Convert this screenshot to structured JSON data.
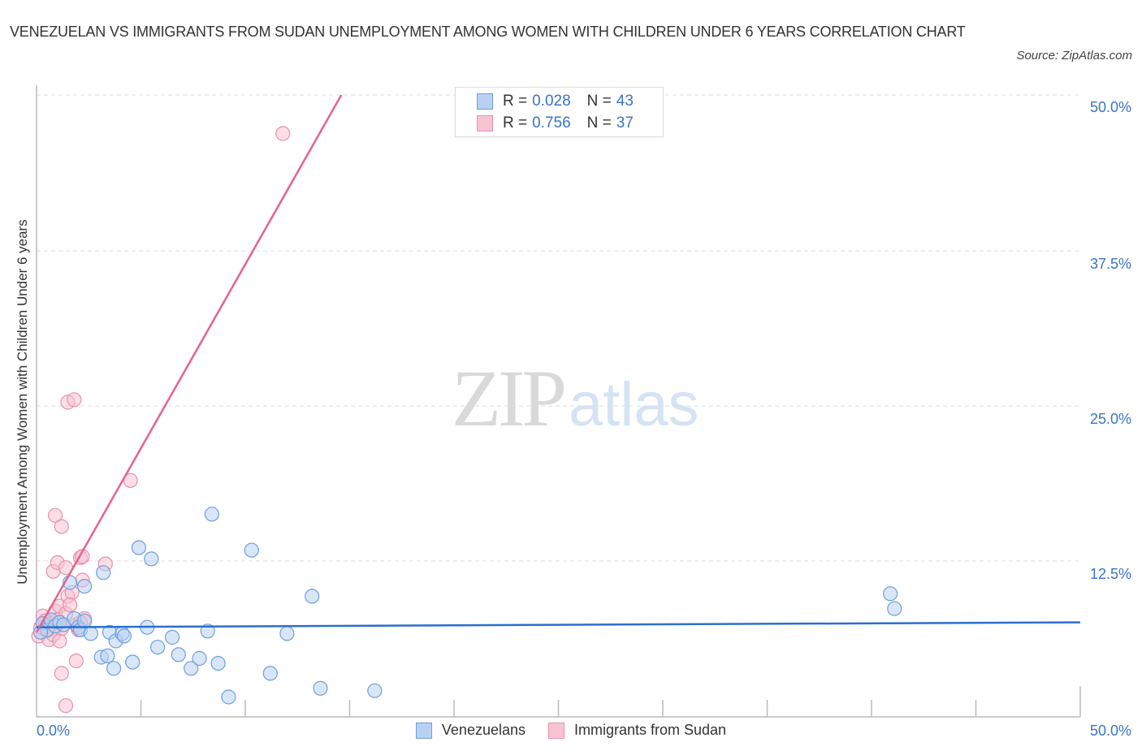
{
  "header": {
    "title": "VENEZUELAN VS IMMIGRANTS FROM SUDAN UNEMPLOYMENT AMONG WOMEN WITH CHILDREN UNDER 6 YEARS CORRELATION CHART",
    "source": "Source: ZipAtlas.com"
  },
  "legend": {
    "rows": [
      {
        "r_label": "R =",
        "r_value": "0.028",
        "n_label": "N =",
        "n_value": "43",
        "color_fill": "#b8d1f3",
        "color_stroke": "#6f9fdc"
      },
      {
        "r_label": "R =",
        "r_value": "0.756",
        "n_label": "N =",
        "n_value": "37",
        "color_fill": "#f8c3d2",
        "color_stroke": "#e891ab"
      }
    ]
  },
  "bottom_legend": {
    "items": [
      {
        "label": "Venezuelans",
        "color_fill": "#b8d1f3",
        "color_stroke": "#6f9fdc"
      },
      {
        "label": "Immigrants from Sudan",
        "color_fill": "#f8c3d2",
        "color_stroke": "#e891ab"
      }
    ]
  },
  "axes": {
    "x_min_label": "0.0%",
    "x_max_label": "50.0%",
    "y_ticks": [
      "50.0%",
      "37.5%",
      "25.0%",
      "12.5%"
    ],
    "ylabel": "Unemployment Among Women with Children Under 6 years"
  },
  "watermark": {
    "zip": "ZIP",
    "atlas": "atlas"
  },
  "colors": {
    "blue_line": "#2a6fcf",
    "pink_line": "#e5638e",
    "blue_fill": "#b8d1f3",
    "blue_stroke": "#6f9fdc",
    "pink_fill": "#f8c3d2",
    "pink_stroke": "#e891ab",
    "tick_label": "#3a74c8"
  },
  "chart_data": {
    "type": "scatter",
    "title": "VENEZUELAN VS IMMIGRANTS FROM SUDAN UNEMPLOYMENT AMONG WOMEN WITH CHILDREN UNDER 6 YEARS CORRELATION CHART",
    "xlabel": "",
    "ylabel": "Unemployment Among Women with Children Under 6 years",
    "xlim": [
      0,
      50
    ],
    "ylim": [
      0,
      50
    ],
    "x_tick_labels": [
      "0.0%",
      "50.0%"
    ],
    "y_tick_labels": [
      "12.5%",
      "25.0%",
      "37.5%",
      "50.0%"
    ],
    "grid": "horizontal dashed at 12.5, 25, 37.5, 50",
    "legend_position": "bottom center; stats box top center",
    "series": [
      {
        "name": "Venezuelans",
        "R": 0.028,
        "N": 43,
        "trendline": {
          "x": [
            0,
            50
          ],
          "y": [
            7.2,
            7.6
          ]
        },
        "points": [
          [
            0.3,
            7.5
          ],
          [
            0.5,
            7.0
          ],
          [
            0.7,
            7.8
          ],
          [
            0.9,
            7.3
          ],
          [
            1.1,
            7.6
          ],
          [
            1.3,
            7.4
          ],
          [
            1.6,
            10.8
          ],
          [
            1.8,
            7.9
          ],
          [
            2.0,
            7.2
          ],
          [
            2.1,
            7.0
          ],
          [
            2.3,
            10.5
          ],
          [
            2.3,
            7.7
          ],
          [
            2.6,
            6.7
          ],
          [
            3.1,
            4.8
          ],
          [
            3.2,
            11.6
          ],
          [
            3.4,
            4.9
          ],
          [
            3.5,
            6.8
          ],
          [
            3.7,
            3.9
          ],
          [
            3.8,
            6.1
          ],
          [
            4.1,
            6.7
          ],
          [
            4.2,
            6.5
          ],
          [
            4.6,
            4.4
          ],
          [
            4.9,
            13.6
          ],
          [
            5.3,
            7.2
          ],
          [
            5.5,
            12.7
          ],
          [
            5.8,
            5.6
          ],
          [
            6.5,
            6.4
          ],
          [
            6.8,
            5.0
          ],
          [
            7.4,
            3.9
          ],
          [
            7.8,
            4.7
          ],
          [
            8.2,
            6.9
          ],
          [
            8.4,
            16.3
          ],
          [
            8.7,
            4.3
          ],
          [
            9.2,
            1.6
          ],
          [
            10.3,
            13.4
          ],
          [
            11.2,
            3.5
          ],
          [
            12.0,
            6.7
          ],
          [
            13.2,
            9.7
          ],
          [
            13.6,
            2.3
          ],
          [
            16.2,
            2.1
          ],
          [
            40.9,
            9.9
          ],
          [
            41.1,
            8.7
          ],
          [
            0.2,
            6.8
          ]
        ]
      },
      {
        "name": "Immigrants from Sudan",
        "R": 0.756,
        "N": 37,
        "trendline": {
          "x": [
            0,
            14.6
          ],
          "y": [
            6.8,
            50
          ]
        },
        "points": [
          [
            0.1,
            6.5
          ],
          [
            0.2,
            7.2
          ],
          [
            0.3,
            8.1
          ],
          [
            0.4,
            7.7
          ],
          [
            0.5,
            6.9
          ],
          [
            0.6,
            6.2
          ],
          [
            0.7,
            7.5
          ],
          [
            0.8,
            6.6
          ],
          [
            0.9,
            8.5
          ],
          [
            1.0,
            7.8
          ],
          [
            1.1,
            6.1
          ],
          [
            1.2,
            7.1
          ],
          [
            0.8,
            11.7
          ],
          [
            0.9,
            16.2
          ],
          [
            1.0,
            12.4
          ],
          [
            1.1,
            8.9
          ],
          [
            1.2,
            15.3
          ],
          [
            1.2,
            3.5
          ],
          [
            1.4,
            12.0
          ],
          [
            1.5,
            25.3
          ],
          [
            1.5,
            9.7
          ],
          [
            1.7,
            10.0
          ],
          [
            1.4,
            0.9
          ],
          [
            1.4,
            8.3
          ],
          [
            1.6,
            9.0
          ],
          [
            1.8,
            25.5
          ],
          [
            1.9,
            7.4
          ],
          [
            1.9,
            4.5
          ],
          [
            2.0,
            7.0
          ],
          [
            2.1,
            12.8
          ],
          [
            2.2,
            12.9
          ],
          [
            2.2,
            11.0
          ],
          [
            2.3,
            7.9
          ],
          [
            3.3,
            12.3
          ],
          [
            4.5,
            19.0
          ],
          [
            11.8,
            46.9
          ],
          [
            2.1,
            7.6
          ]
        ]
      }
    ]
  }
}
